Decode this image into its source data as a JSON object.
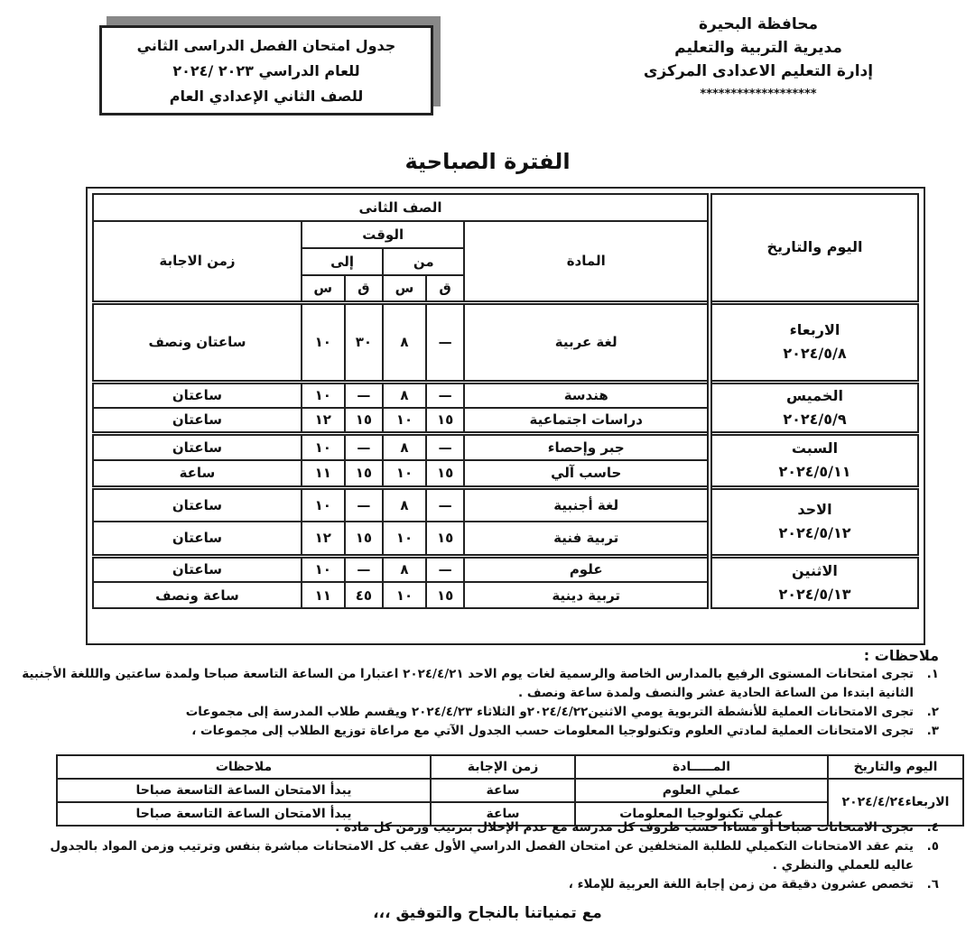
{
  "header": {
    "org_lines": [
      "محافظة البحيرة",
      "مديرية التربية والتعليم",
      "إدارة التعليم الاعدادى المركزى",
      "*******************"
    ],
    "title_lines": [
      "جدول امتحان الفصل الدراسى الثاني",
      "للعام الدراسي ٢٠٢٣ /٢٠٢٤",
      "للصف الثاني الإعدادي العام"
    ]
  },
  "period": "الفترة الصباحية",
  "main_table": {
    "grade": "الصف الثانى",
    "col_day": "اليوم والتاريخ",
    "col_subject": "المادة",
    "col_time": "الوقت",
    "col_from": "من",
    "col_to": "إلى",
    "col_min": "ق",
    "col_hour": "س",
    "col_duration": "زمن الاجابة",
    "days": [
      {
        "day": "الاربعاء",
        "date": "٢٠٢٤/٥/٨",
        "rows": [
          [
            "لغة عربية",
            "—",
            "٨",
            "٣٠",
            "١٠",
            "ساعتان ونصف"
          ]
        ]
      },
      {
        "day": "الخميس",
        "date": "٢٠٢٤/٥/٩",
        "rows": [
          [
            "هندسة",
            "—",
            "٨",
            "—",
            "١٠",
            "ساعتان"
          ],
          [
            "دراسات اجتماعية",
            "١٥",
            "١٠",
            "١٥",
            "١٢",
            "ساعتان"
          ]
        ]
      },
      {
        "day": "السبت",
        "date": "٢٠٢٤/٥/١١",
        "rows": [
          [
            "جبر وإحصاء",
            "—",
            "٨",
            "—",
            "١٠",
            "ساعتان"
          ],
          [
            "حاسب آلي",
            "١٥",
            "١٠",
            "١٥",
            "١١",
            "ساعة"
          ]
        ]
      },
      {
        "day": "الاحد",
        "date": "٢٠٢٤/٥/١٢",
        "rows": [
          [
            "لغة أجنبية",
            "—",
            "٨",
            "—",
            "١٠",
            "ساعتان"
          ],
          [
            "تربية فنية",
            "١٥",
            "١٠",
            "١٥",
            "١٢",
            "ساعتان"
          ]
        ]
      },
      {
        "day": "الاثنين",
        "date": "٢٠٢٤/٥/١٣",
        "rows": [
          [
            "علوم",
            "—",
            "٨",
            "—",
            "١٠",
            "ساعتان"
          ],
          [
            "تربية دينية",
            "١٥",
            "١٠",
            "٤٥",
            "١١",
            "ساعة ونصف"
          ]
        ]
      }
    ]
  },
  "notes": {
    "heading": "ملاحظات :",
    "items_before": [
      {
        "n": "١.",
        "text": "تجرى امتحانات المستوى الرفيع بالمدارس الخاصة والرسمية لغات يوم الاحد ٢٠٢٤/٤/٢١ اعتبارا من الساعة التاسعة صباحا ولمدة ساعتين والللغة الأجنبية الثانية ابتدءا من الساعة الحادية عشر والنصف ولمدة ساعة ونصف ."
      },
      {
        "n": "٢.",
        "text": "تجرى الامتحانات العملية للأنشطة التربوية يومي الاثنين٢٠٢٤/٤/٢٢و الثلاثاء ٢٠٢٤/٤/٢٣ ويقسم طلاب المدرسة إلى مجموعات"
      },
      {
        "n": "٣.",
        "text": "تجرى الامتحانات العملية لمادتي العلوم وتكنولوجيا المعلومات حسب الجدول الآتي مع مراعاة توزيع الطلاب إلى مجموعات ،"
      }
    ],
    "practical_table": {
      "headers": [
        "اليوم والتاريخ",
        "المـــــادة",
        "زمن الإجابة",
        "ملاحظات"
      ],
      "day": "الاربعاء٢٠٢٤/٤/٢٤",
      "rows": [
        [
          "عملي العلوم",
          "ساعة",
          "يبدأ الامتحان الساعة التاسعة صباحا"
        ],
        [
          "عملي تكنولوجيا المعلومات",
          "ساعة",
          "يبدأ الامتحان الساعة التاسعة صباحا"
        ]
      ]
    },
    "items_after": [
      {
        "n": "٤.",
        "text": "تجرى الامتحانات صباحا أو مساءا حسب ظروف كل مدرسة مع عدم الإخلال بترتيب وزمن كل مادة ."
      },
      {
        "n": "٥.",
        "text": "يتم عقد الامتحانات التكميلي للطلبة المتخلفين عن امتحان الفصل الدراسي الأول عقب كل الامتحانات مباشرة بنفس وترتيب وزمن المواد بالجدول عاليه للعملي والنظري ."
      },
      {
        "n": "٦.",
        "text": "تخصص عشرون دقيقة من زمن إجابة اللغة العربية للإملاء ،"
      }
    ]
  },
  "closing": "مع تمنياتنا بالنجاح والتوفيق ،،،"
}
